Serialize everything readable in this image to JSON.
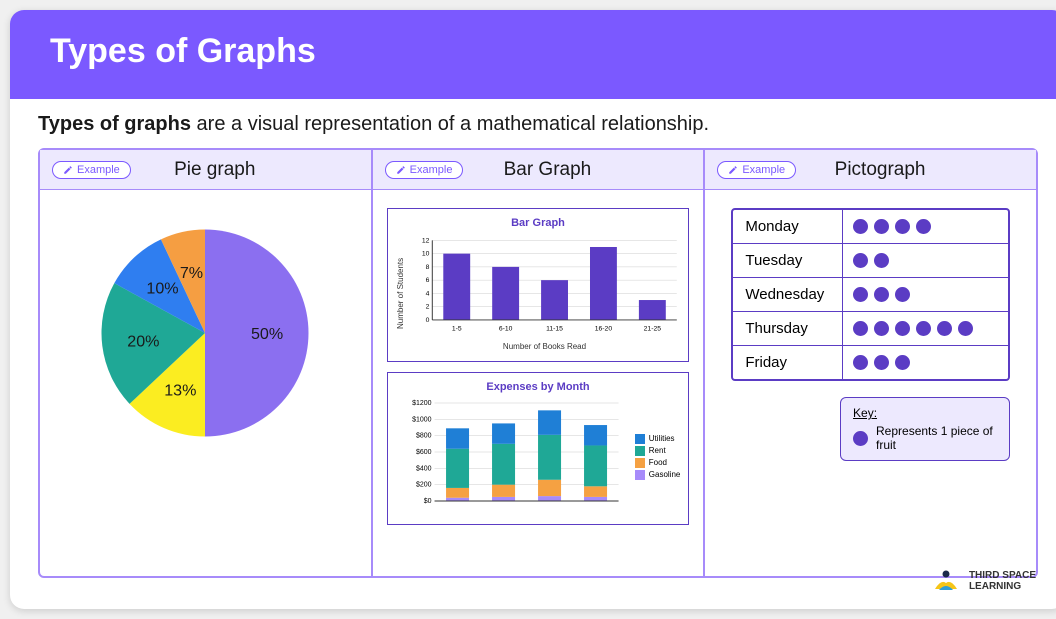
{
  "header": {
    "title": "Types of Graphs"
  },
  "intro": {
    "bold": "Types of graphs",
    "rest": " are a visual representation of a mathematical relationship."
  },
  "example_label": "Example",
  "panels": {
    "pie": {
      "title": "Pie graph",
      "slices": [
        {
          "label": "50%",
          "value": 50,
          "color": "#8b6ff0"
        },
        {
          "label": "13%",
          "value": 13,
          "color": "#fbed21"
        },
        {
          "label": "20%",
          "value": 20,
          "color": "#1fa896"
        },
        {
          "label": "10%",
          "value": 10,
          "color": "#2f7ef0"
        },
        {
          "label": "7%",
          "value": 7,
          "color": "#f59e42"
        }
      ]
    },
    "bar": {
      "title": "Bar Graph",
      "chart1": {
        "title": "Bar Graph",
        "ylabel": "Number of Students",
        "xlabel": "Number of Books Read",
        "ymax": 12,
        "ytick": 2,
        "bar_color": "#5b3cc4",
        "grid_color": "#cccccc",
        "categories": [
          "1-5",
          "6-10",
          "11-15",
          "16-20",
          "21-25"
        ],
        "values": [
          10,
          8,
          6,
          11,
          3
        ]
      },
      "chart2": {
        "title": "Expenses by Month",
        "ymax": 1200,
        "ytick": 200,
        "yprefix": "$",
        "grid_color": "#cccccc",
        "categories": [
          "",
          "",
          "",
          ""
        ],
        "series": [
          {
            "name": "Utilities",
            "color": "#1f7fd6",
            "values": [
              250,
              250,
              300,
              250
            ]
          },
          {
            "name": "Rent",
            "color": "#1fa896",
            "values": [
              480,
              500,
              550,
              500
            ]
          },
          {
            "name": "Food",
            "color": "#f5a142",
            "values": [
              120,
              150,
              200,
              130
            ]
          },
          {
            "name": "Gasoline",
            "color": "#a78bfa",
            "values": [
              40,
              50,
              60,
              50
            ]
          }
        ]
      }
    },
    "picto": {
      "title": "Pictograph",
      "dot_color": "#5b3cc4",
      "rows": [
        {
          "day": "Monday",
          "count": 4
        },
        {
          "day": "Tuesday",
          "count": 2
        },
        {
          "day": "Wednesday",
          "count": 3
        },
        {
          "day": "Thursday",
          "count": 6
        },
        {
          "day": "Friday",
          "count": 3
        }
      ],
      "key": {
        "title": "Key:",
        "text": "Represents 1 piece of fruit"
      }
    }
  },
  "brand": {
    "line1": "THIRD SPACE",
    "line2": "LEARNING"
  }
}
